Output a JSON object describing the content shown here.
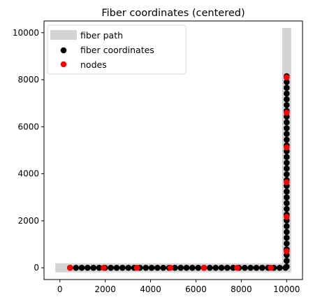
{
  "chart_data": {
    "type": "scatter",
    "title": "Fiber coordinates (centered)",
    "xlabel": "",
    "ylabel": "",
    "xlim": [
      -700,
      10700
    ],
    "ylim": [
      -500,
      10500
    ],
    "xticks": [
      0,
      2000,
      4000,
      6000,
      8000,
      10000
    ],
    "yticks": [
      0,
      2000,
      4000,
      6000,
      8000,
      10000
    ],
    "grid": false,
    "legend_position": "top-left",
    "series": [
      {
        "name": "fiber path",
        "kind": "path",
        "color": "#d3d3d3",
        "points": [
          [
            -200,
            0
          ],
          [
            10000,
            0
          ],
          [
            10000,
            10200
          ]
        ]
      },
      {
        "name": "fiber coordinates",
        "kind": "scatter",
        "color": "#000000",
        "x_start": 450,
        "x_end": 9950,
        "x_count": 38,
        "y_start": 50,
        "y_end": 8150,
        "y_count": 34,
        "x_constant_vertical": 10000,
        "y_constant_horizontal": 0
      },
      {
        "name": "nodes",
        "kind": "scatter",
        "color": "#ff0000",
        "points": [
          [
            450,
            0
          ],
          [
            1930,
            0
          ],
          [
            3400,
            0
          ],
          [
            4870,
            0
          ],
          [
            6350,
            0
          ],
          [
            7820,
            0
          ],
          [
            9300,
            0
          ],
          [
            10000,
            700
          ],
          [
            10000,
            2170
          ],
          [
            10000,
            3640
          ],
          [
            10000,
            5120
          ],
          [
            10000,
            6600
          ],
          [
            10000,
            8100
          ]
        ]
      }
    ]
  }
}
